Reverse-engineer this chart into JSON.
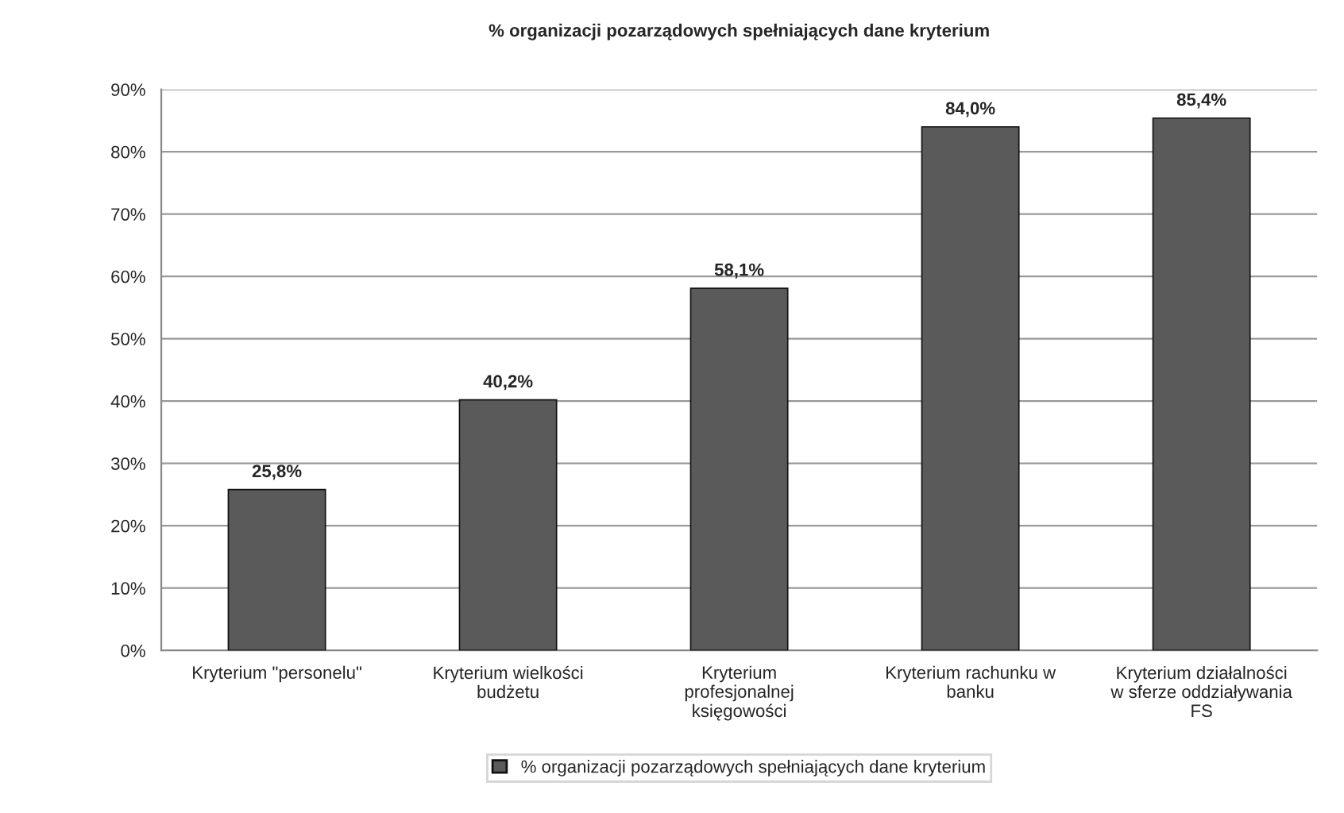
{
  "chart_data": {
    "type": "bar",
    "title": "% organizacji pozarządowych spełniających dane kryterium",
    "categories": [
      "Kryterium \"personelu\"",
      "Kryterium wielkości budżetu",
      "Kryterium profesjonalnej księgowości",
      "Kryterium rachunku w banku",
      "Kryterium działalności w sferze oddziaływania FS"
    ],
    "series": [
      {
        "name": "% organizacji pozarządowych spełniających dane kryterium",
        "color": "#5a5a5a",
        "values": [
          25.8,
          40.2,
          58.1,
          84.0,
          85.4
        ],
        "value_labels": [
          "25,8%",
          "40,2%",
          "58,1%",
          "84,0%",
          "85,4%"
        ]
      }
    ],
    "ylim": [
      0,
      90
    ],
    "yticks": [
      {
        "value": 0,
        "label": "0%"
      },
      {
        "value": 10,
        "label": "10%"
      },
      {
        "value": 20,
        "label": "20%"
      },
      {
        "value": 30,
        "label": "30%"
      },
      {
        "value": 40,
        "label": "40%"
      },
      {
        "value": 50,
        "label": "50%"
      },
      {
        "value": 60,
        "label": "60%"
      },
      {
        "value": 70,
        "label": "70%"
      },
      {
        "value": 80,
        "label": "80%"
      },
      {
        "value": 90,
        "label": "90%"
      }
    ],
    "grid": "y",
    "legend": "bottom"
  }
}
